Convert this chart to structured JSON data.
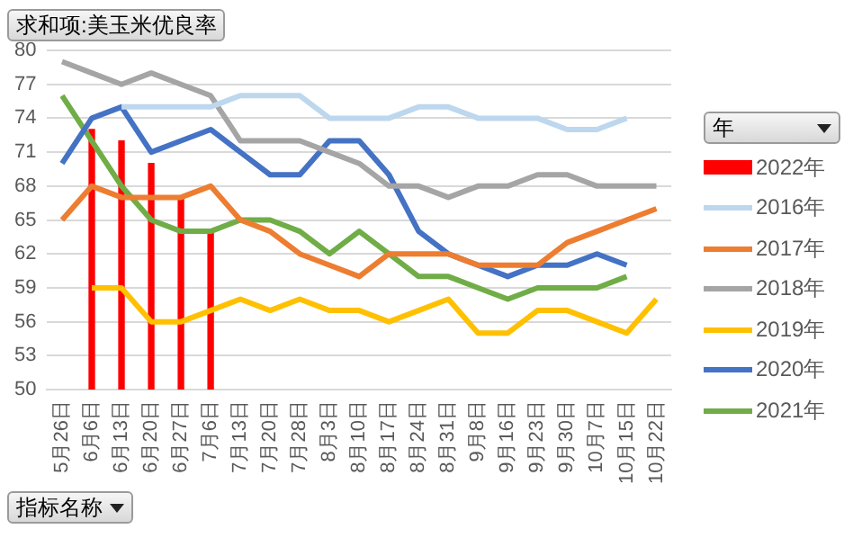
{
  "chart_data": {
    "type": "line",
    "title": "求和项:美玉米优良率",
    "xlabel": "指标名称",
    "legend_title": "年",
    "categories": [
      "5月26日",
      "6月6日",
      "6月13日",
      "6月20日",
      "6月27日",
      "7月6日",
      "7月13日",
      "7月20日",
      "7月28日",
      "8月3日",
      "8月10日",
      "8月17日",
      "8月24日",
      "8月31日",
      "9月8日",
      "9月16日",
      "9月23日",
      "9月30日",
      "10月7日",
      "10月15日",
      "10月22日"
    ],
    "series": [
      {
        "name": "2022年",
        "type": "bar",
        "color": "#ff0000",
        "values": [
          null,
          73,
          72,
          70,
          67,
          64,
          null,
          null,
          null,
          null,
          null,
          null,
          null,
          null,
          null,
          null,
          null,
          null,
          null,
          null,
          null
        ]
      },
      {
        "name": "2016年",
        "color": "#bdd7ee",
        "values": [
          null,
          null,
          75,
          75,
          75,
          75,
          76,
          76,
          76,
          74,
          74,
          74,
          75,
          75,
          74,
          74,
          74,
          73,
          73,
          74,
          null
        ]
      },
      {
        "name": "2017年",
        "color": "#ed7d31",
        "values": [
          65,
          68,
          67,
          67,
          67,
          68,
          65,
          64,
          62,
          61,
          60,
          62,
          62,
          62,
          61,
          61,
          61,
          63,
          64,
          65,
          66
        ]
      },
      {
        "name": "2018年",
        "color": "#a5a5a5",
        "values": [
          79,
          78,
          77,
          78,
          77,
          76,
          72,
          72,
          72,
          71,
          70,
          68,
          68,
          67,
          68,
          68,
          69,
          69,
          68,
          68,
          68
        ]
      },
      {
        "name": "2019年",
        "color": "#ffc000",
        "values": [
          null,
          59,
          59,
          56,
          56,
          57,
          58,
          57,
          58,
          57,
          57,
          56,
          57,
          58,
          55,
          55,
          57,
          57,
          56,
          55,
          58
        ]
      },
      {
        "name": "2020年",
        "color": "#4472c4",
        "values": [
          70,
          74,
          75,
          71,
          72,
          73,
          71,
          69,
          69,
          72,
          72,
          69,
          64,
          62,
          61,
          60,
          61,
          61,
          62,
          61,
          null
        ]
      },
      {
        "name": "2021年",
        "color": "#70ad47",
        "values": [
          76,
          72,
          68,
          65,
          64,
          64,
          65,
          65,
          64,
          62,
          64,
          62,
          60,
          60,
          59,
          58,
          59,
          59,
          59,
          60,
          null
        ]
      }
    ],
    "ylim": [
      50,
      80
    ],
    "yticks": [
      50,
      53,
      56,
      59,
      62,
      65,
      68,
      71,
      74,
      77,
      80
    ],
    "grid": "y",
    "legend": "right",
    "marker": "none",
    "line_style": "solid"
  }
}
